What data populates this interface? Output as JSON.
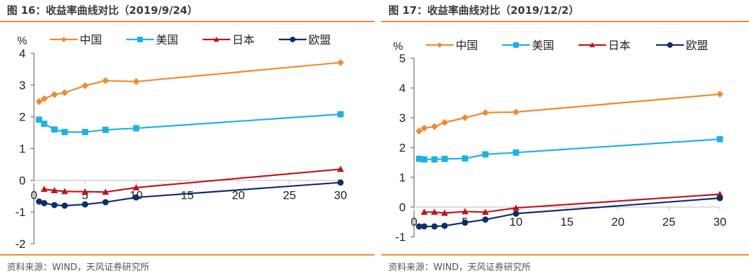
{
  "figures": [
    {
      "title": "图 16：收益率曲线对比（2019/9/24）",
      "source": "资料来源：WIND，天风证券研究所"
    },
    {
      "title": "图 17：收益率曲线对比（2019/12/2）",
      "source": "资料来源：WIND，天风证券研究所"
    }
  ],
  "chart_data": [
    {
      "type": "line",
      "title": "收益率曲线对比（2019/9/24）",
      "xlabel": "",
      "ylabel": "%",
      "xlim": [
        0,
        30
      ],
      "ylim": [
        -2,
        4
      ],
      "xticks": [
        0,
        5,
        10,
        15,
        20,
        25,
        30
      ],
      "yticks": [
        -2,
        -1,
        0,
        1,
        2,
        3,
        4
      ],
      "grid": false,
      "legend_position": "top",
      "series": [
        {
          "name": "中国",
          "color": "#ed8a2f",
          "marker": "diamond",
          "x": [
            0.5,
            1,
            2,
            3,
            5,
            7,
            10,
            30
          ],
          "values": [
            2.48,
            2.57,
            2.7,
            2.76,
            2.98,
            3.14,
            3.11,
            3.71
          ]
        },
        {
          "name": "美国",
          "color": "#1fb0e6",
          "marker": "square",
          "x": [
            0.5,
            1,
            2,
            3,
            5,
            7,
            10,
            30
          ],
          "values": [
            1.91,
            1.78,
            1.6,
            1.52,
            1.52,
            1.59,
            1.64,
            2.08
          ]
        },
        {
          "name": "日本",
          "color": "#c0141c",
          "marker": "triangle",
          "x": [
            1,
            2,
            3,
            5,
            7,
            10,
            30
          ],
          "values": [
            -0.28,
            -0.32,
            -0.35,
            -0.36,
            -0.37,
            -0.23,
            0.35
          ]
        },
        {
          "name": "欧盟",
          "color": "#0f2c6b",
          "marker": "circle",
          "x": [
            0.5,
            1,
            2,
            3,
            5,
            7,
            10,
            30
          ],
          "values": [
            -0.67,
            -0.72,
            -0.78,
            -0.8,
            -0.76,
            -0.69,
            -0.54,
            -0.07
          ]
        }
      ]
    },
    {
      "type": "line",
      "title": "收益率曲线对比（2019/12/2）",
      "xlabel": "",
      "ylabel": "%",
      "xlim": [
        0,
        30
      ],
      "ylim": [
        -1,
        5
      ],
      "xticks": [
        0,
        5,
        10,
        15,
        20,
        25,
        30
      ],
      "yticks": [
        -1,
        0,
        1,
        2,
        3,
        4,
        5
      ],
      "grid": false,
      "legend_position": "top",
      "series": [
        {
          "name": "中国",
          "color": "#ed8a2f",
          "marker": "diamond",
          "x": [
            0.5,
            1,
            2,
            3,
            5,
            7,
            10,
            30
          ],
          "values": [
            2.55,
            2.65,
            2.7,
            2.84,
            3.0,
            3.17,
            3.19,
            3.79
          ]
        },
        {
          "name": "美国",
          "color": "#1fb0e6",
          "marker": "square",
          "x": [
            0.5,
            1,
            2,
            3,
            5,
            7,
            10,
            30
          ],
          "values": [
            1.62,
            1.6,
            1.6,
            1.62,
            1.63,
            1.77,
            1.83,
            2.28
          ]
        },
        {
          "name": "日本",
          "color": "#c0141c",
          "marker": "triangle",
          "x": [
            1,
            2,
            3,
            5,
            7,
            10,
            30
          ],
          "values": [
            -0.17,
            -0.17,
            -0.2,
            -0.15,
            -0.17,
            -0.03,
            0.43
          ]
        },
        {
          "name": "欧盟",
          "color": "#0f2c6b",
          "marker": "circle",
          "x": [
            0.5,
            1,
            2,
            3,
            5,
            7,
            10,
            30
          ],
          "values": [
            -0.65,
            -0.65,
            -0.65,
            -0.63,
            -0.52,
            -0.42,
            -0.22,
            0.3
          ]
        }
      ]
    }
  ]
}
